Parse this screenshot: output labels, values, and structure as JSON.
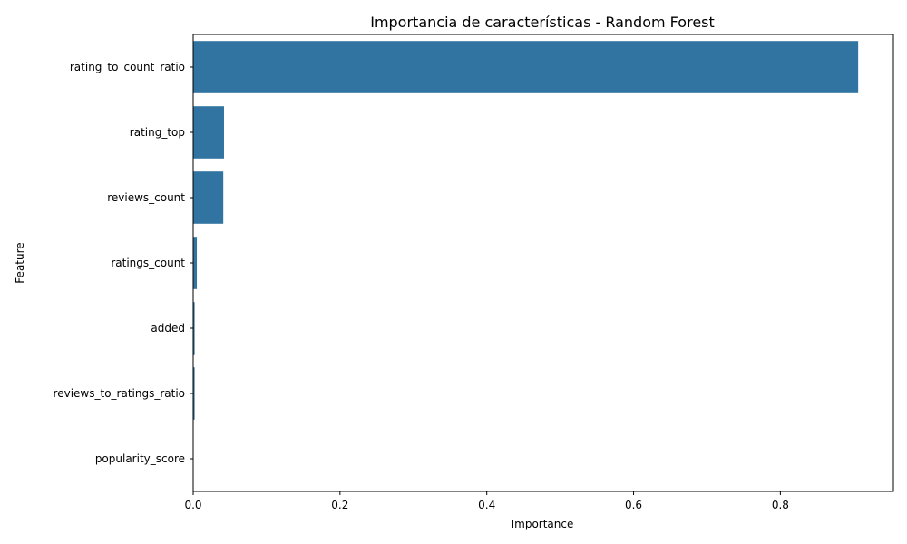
{
  "chart_data": {
    "type": "bar",
    "orientation": "horizontal",
    "title": "Importancia de características - Random Forest",
    "xlabel": "Importance",
    "ylabel": "Feature",
    "categories": [
      "rating_to_count_ratio",
      "rating_top",
      "reviews_count",
      "ratings_count",
      "added",
      "reviews_to_ratings_ratio",
      "popularity_score"
    ],
    "values": [
      0.906,
      0.042,
      0.041,
      0.005,
      0.002,
      0.002,
      0.0005
    ],
    "xlim": [
      0.0,
      0.954
    ],
    "xticks": [
      "0.0",
      "0.2",
      "0.4",
      "0.6",
      "0.8"
    ],
    "xtick_values": [
      0.0,
      0.2,
      0.4,
      0.6,
      0.8
    ],
    "bar_color": "#3274a1",
    "grid": false
  }
}
